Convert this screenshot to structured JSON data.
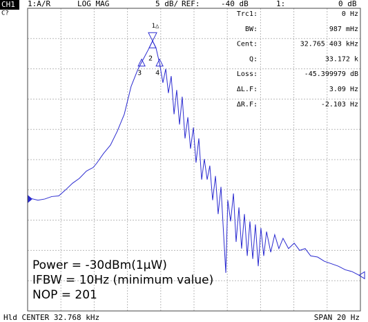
{
  "chart_data": {
    "type": "line",
    "channel": "CH1",
    "status": "C?",
    "header": [
      "1:A/R",
      "LOG MAG",
      "5 dB/",
      "REF:",
      "-40 dB",
      "1:",
      "0 dB"
    ],
    "readout": [
      [
        "Trc1:",
        "0 Hz"
      ],
      [
        "BW:",
        "987 mHz"
      ],
      [
        "Cent:",
        "32.765 403 kHz"
      ],
      [
        "Q:",
        "33.172 k"
      ],
      [
        "Loss:",
        "-45.399979 dB"
      ],
      [
        "ΔL.F:",
        "3.09 Hz"
      ],
      [
        "ΔR.F:",
        "-2.103 Hz"
      ]
    ],
    "annotations": [
      "Power = -30dBm(1μW)",
      "IFBW = 10Hz (minimum value)",
      "NOP = 201"
    ],
    "footer": [
      "Hld CENTER 32.768 kHz",
      "SPAN 20 Hz"
    ],
    "xlim": [
      32758,
      32778
    ],
    "ylim": [
      -90,
      -40
    ],
    "xticks": [
      32758,
      32760,
      32762,
      32764,
      32766,
      32768,
      32770,
      32772,
      32774,
      32776,
      32778
    ],
    "yticks": [
      -90,
      -85,
      -80,
      -75,
      -70,
      -65,
      -60,
      -55,
      -50,
      -45,
      -40
    ],
    "grid": true,
    "x": [
      32758.17,
      32758.62,
      32759.04,
      32759.45,
      32759.87,
      32760.28,
      32760.7,
      32761.11,
      32761.53,
      32761.94,
      32762.15,
      32762.56,
      32762.98,
      32763.39,
      32763.81,
      32764.22,
      32764.64,
      32764.97,
      32765.26,
      32765.51,
      32765.72,
      32765.93,
      32766.13,
      32766.3,
      32766.46,
      32766.63,
      32766.8,
      32766.96,
      32767.13,
      32767.29,
      32767.46,
      32767.63,
      32767.79,
      32767.96,
      32768.12,
      32768.29,
      32768.46,
      32768.62,
      32768.79,
      32768.95,
      32769.12,
      32769.29,
      32769.45,
      32769.62,
      32769.78,
      32769.91,
      32770.03,
      32770.2,
      32770.37,
      32770.53,
      32770.7,
      32770.86,
      32771.03,
      32771.2,
      32771.36,
      32771.53,
      32771.69,
      32771.86,
      32772.02,
      32772.19,
      32772.36,
      32772.61,
      32772.85,
      32773.1,
      32773.35,
      32773.68,
      32774.02,
      32774.35,
      32774.68,
      32775.01,
      32775.43,
      32775.84,
      32776.26,
      32776.67,
      32777.09,
      32777.5,
      32777.92
    ],
    "series": [
      {
        "color": "#2a2ad0",
        "values": [
          -71.4,
          -71.7,
          -71.5,
          -71.1,
          -71.0,
          -70.0,
          -68.9,
          -68.1,
          -66.9,
          -66.3,
          -65.6,
          -64.0,
          -62.6,
          -60.3,
          -57.5,
          -52.9,
          -50.0,
          -48.3,
          -46.8,
          -45.4,
          -46.6,
          -49.1,
          -52.3,
          -50.0,
          -54.0,
          -51.2,
          -57.5,
          -53.5,
          -59.2,
          -54.6,
          -61.5,
          -58.0,
          -63.2,
          -59.7,
          -65.5,
          -61.5,
          -68.3,
          -64.9,
          -68.3,
          -66.0,
          -71.7,
          -67.7,
          -74.0,
          -69.5,
          -77.4,
          -83.7,
          -71.7,
          -75.2,
          -70.6,
          -78.6,
          -72.9,
          -79.7,
          -74.0,
          -80.9,
          -75.2,
          -81.4,
          -75.7,
          -82.6,
          -76.3,
          -80.9,
          -76.9,
          -80.3,
          -77.4,
          -79.7,
          -78.0,
          -79.7,
          -78.8,
          -80.0,
          -79.7,
          -80.9,
          -81.1,
          -81.8,
          -82.2,
          -82.6,
          -83.2,
          -83.5,
          -84.1
        ]
      }
    ],
    "markers": [
      {
        "label": "1△",
        "x": 32765.51,
        "y": -45.4
      },
      {
        "label": "2",
        "x": 32765.51,
        "y": -45.4
      },
      {
        "label": "3",
        "x": 32764.85,
        "y": -48.4
      },
      {
        "label": "4",
        "x": 32765.93,
        "y": -48.4
      }
    ]
  }
}
